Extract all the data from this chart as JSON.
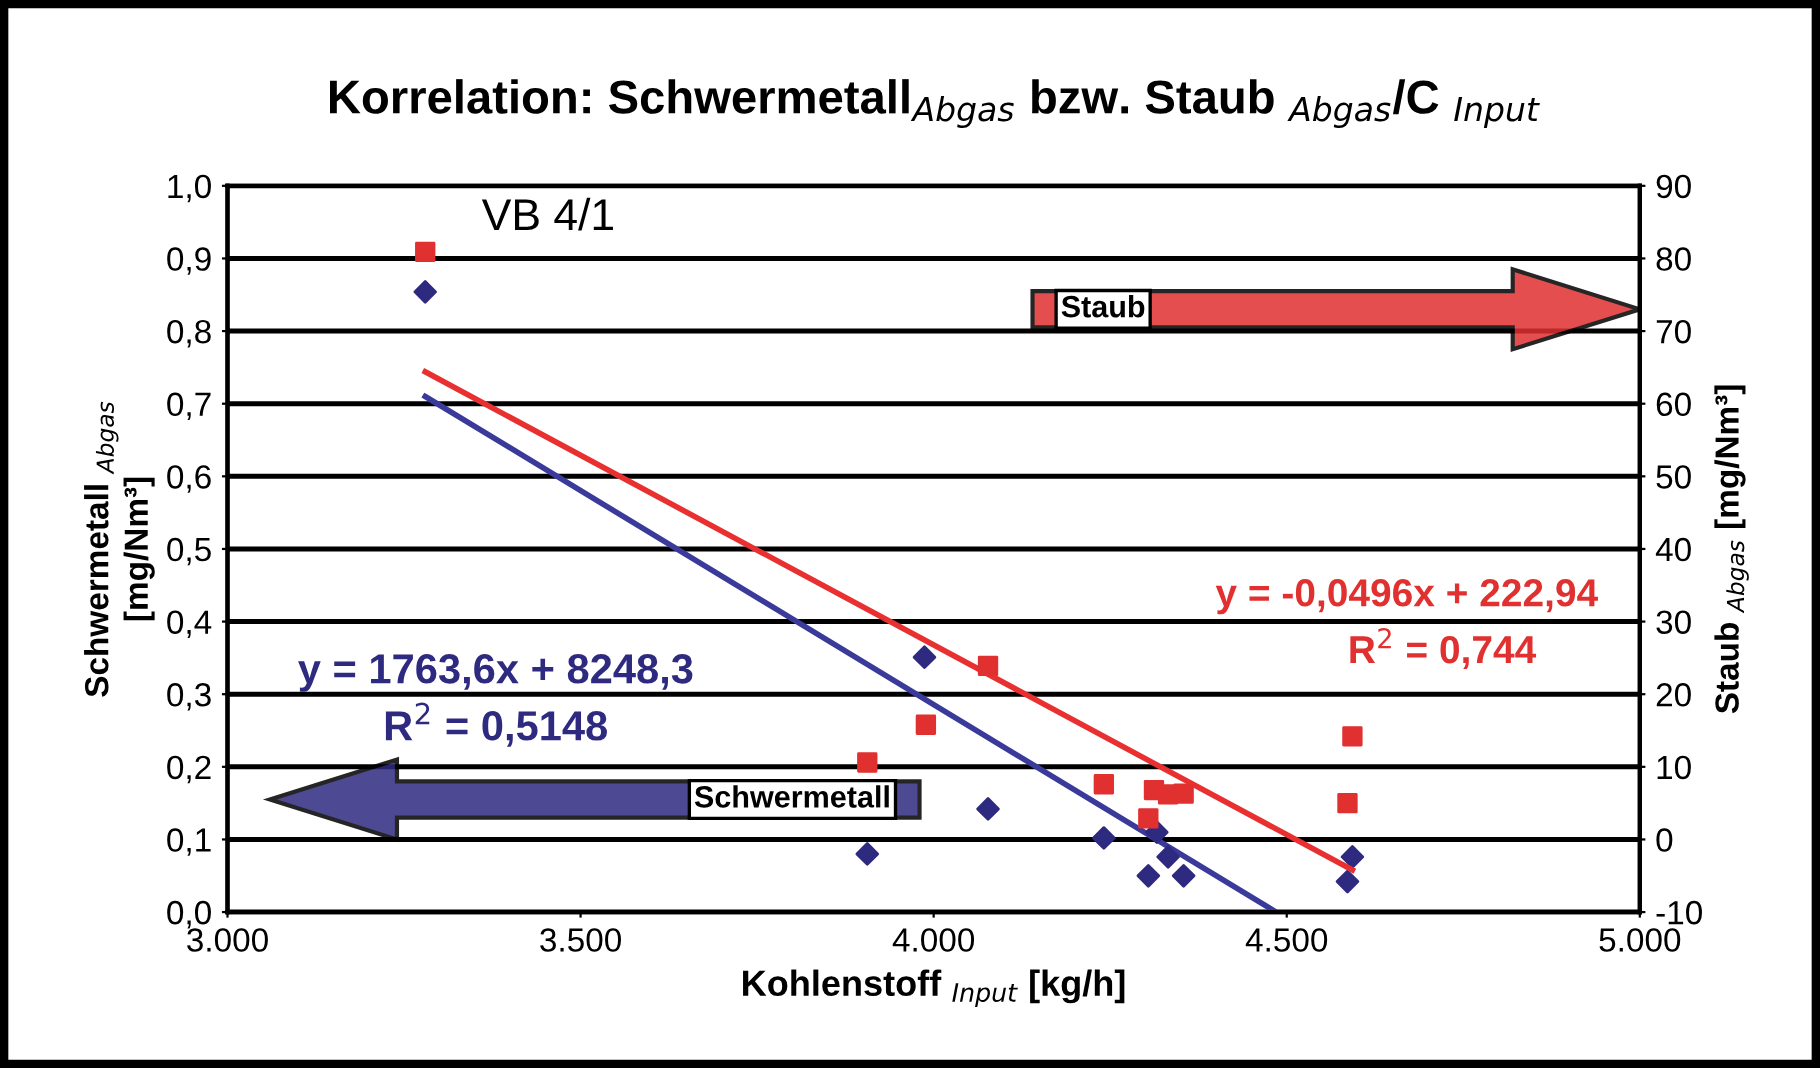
{
  "chart_data": {
    "type": "scatter",
    "title": "Korrelation: Schwermetall$_{Abgas}$ bzw. Staub $_{Abgas}$/C $_{Input}$",
    "xlabel": "Kohlenstoff $_{Input}$ [kg/h]",
    "ylabel": "Schwermetall $_{Abgas}$\n[mg/Nm³]",
    "y2label": "Staub $_{Abgas}$ [mg/Nm³]",
    "annotations": [
      "VB 4/1",
      "y = 1763,6x + 8248,3",
      "R$^{2}$ = 0,5148",
      "y = -0,0496x + 222,94",
      "R$^{2}$ = 0,744"
    ],
    "series": [
      {
        "name": "Schwermetall",
        "axis": "y",
        "color": "#2e2a80",
        "marker": "diamond",
        "x": [
          3280,
          3987,
          3906,
          4077,
          4241,
          4304,
          4316,
          4332,
          4354,
          4593,
          4586
        ],
        "values": [
          0.854,
          0.351,
          0.08,
          0.142,
          0.102,
          0.05,
          0.11,
          0.076,
          0.05,
          0.076,
          0.042
        ]
      },
      {
        "name": "Staub",
        "axis": "y2",
        "color": "#e03030",
        "marker": "square",
        "x": [
          3280,
          4077,
          3989,
          3906,
          4241,
          4312,
          4332,
          4354,
          4304,
          4593,
          4586
        ],
        "values": [
          80.9,
          23.9,
          15.8,
          10.6,
          7.6,
          6.8,
          6.2,
          6.3,
          2.9,
          14.2,
          5.0
        ]
      },
      {
        "type": "line",
        "axis": "y",
        "color": "#3a3a9a",
        "marker": "none",
        "x": [
          3280,
          4485
        ],
        "values": [
          0.71,
          0.0
        ]
      },
      {
        "type": "line",
        "axis": "y2",
        "color": "#e83030",
        "marker": "none",
        "x": [
          3280,
          4593
        ],
        "values": [
          64.4,
          -4.2
        ]
      }
    ],
    "xlim": [
      3000,
      5000
    ],
    "xticks": [
      {
        "value": 3000,
        "label": "3.000"
      },
      {
        "value": 3500,
        "label": "3.500"
      },
      {
        "value": 4000,
        "label": "4.000"
      },
      {
        "value": 4500,
        "label": "4.500"
      },
      {
        "value": 5000,
        "label": "5.000"
      }
    ],
    "ylim": [
      0,
      1
    ],
    "yticks": [
      {
        "value": 0,
        "label": "0,0"
      },
      {
        "value": 0.1,
        "label": "0,1"
      },
      {
        "value": 0.2,
        "label": "0,2"
      },
      {
        "value": 0.3,
        "label": "0,3"
      },
      {
        "value": 0.4,
        "label": "0,4"
      },
      {
        "value": 0.5,
        "label": "0,5"
      },
      {
        "value": 0.6,
        "label": "0,6"
      },
      {
        "value": 0.7,
        "label": "0,7"
      },
      {
        "value": 0.8,
        "label": "0,8"
      },
      {
        "value": 0.9,
        "label": "0,9"
      },
      {
        "value": 1.0,
        "label": "1,0"
      }
    ],
    "y2lim": [
      -10,
      90
    ],
    "y2ticks": [
      -10,
      0,
      10,
      20,
      30,
      40,
      50,
      60,
      70,
      80,
      90
    ],
    "grid": "y",
    "legend": false
  }
}
